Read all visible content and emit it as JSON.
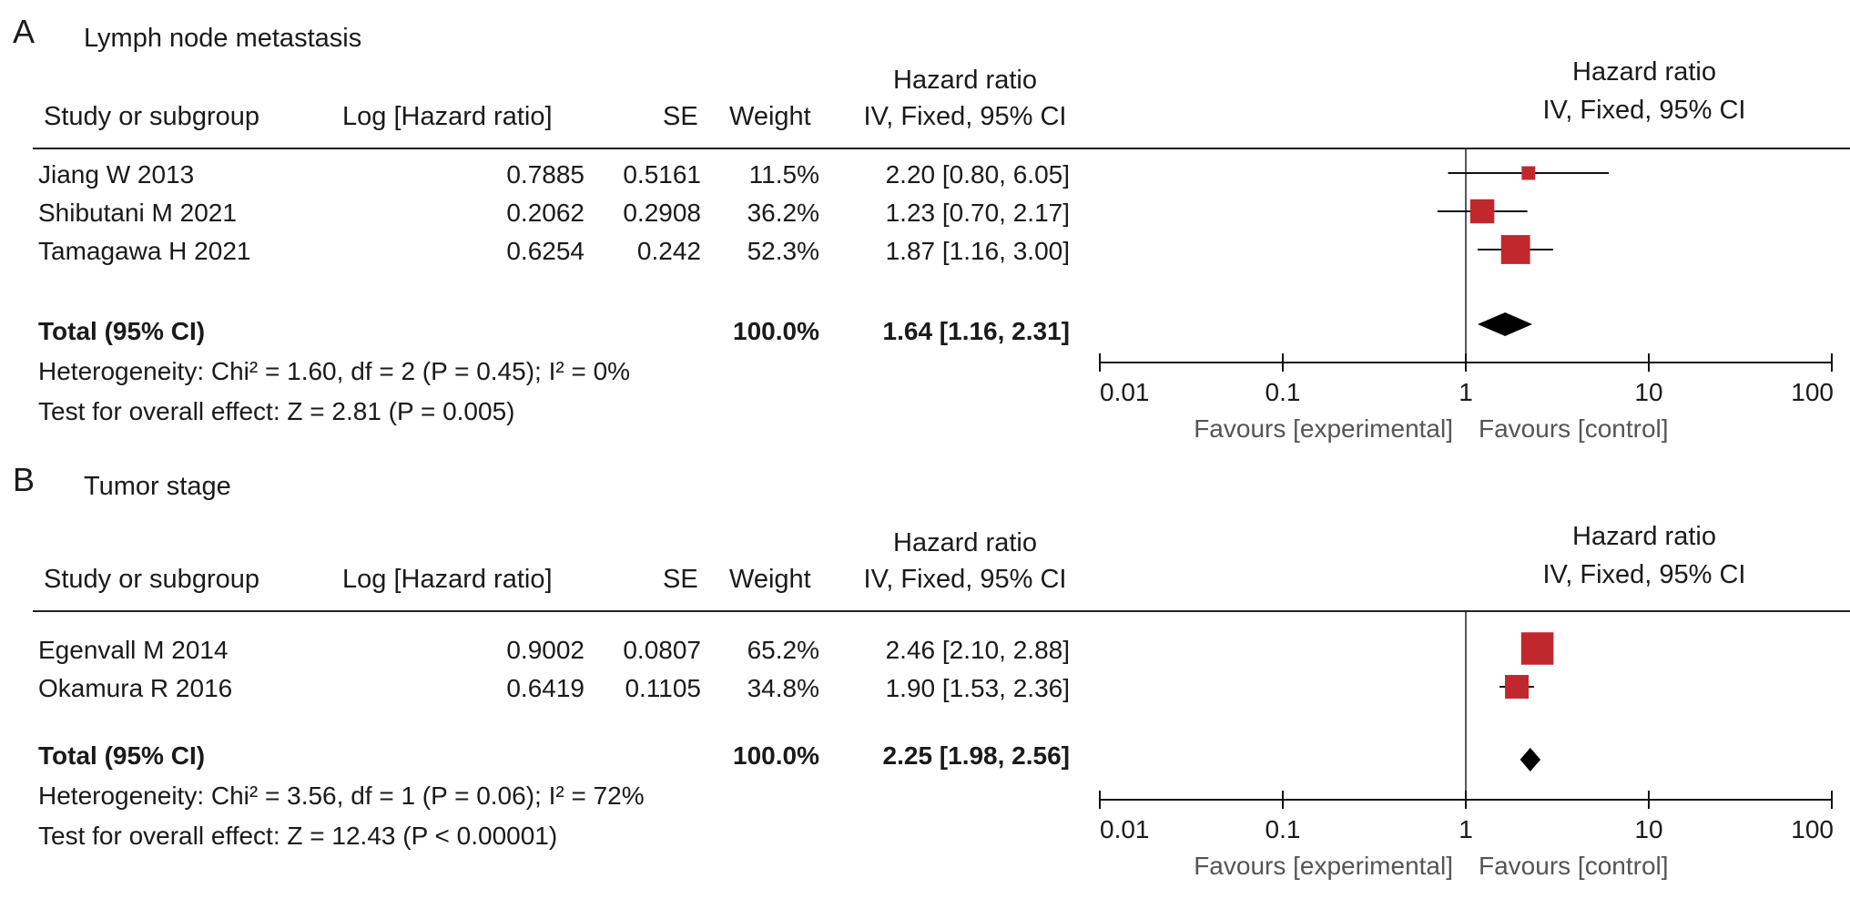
{
  "chart_data": [
    {
      "type": "forest",
      "panel_letter": "A",
      "title": "Lymph node metastasis",
      "columns": {
        "study": "Study or subgroup",
        "log_hr": "Log [Hazard ratio]",
        "se": "SE",
        "weight": "Weight",
        "hr_line1": "Hazard ratio",
        "hr_line2": "IV, Fixed, 95% CI"
      },
      "plot_header": {
        "line1": "Hazard ratio",
        "line2": "IV, Fixed, 95% CI"
      },
      "studies": [
        {
          "name": "Jiang W 2013",
          "log_hr": "0.7885",
          "se": "0.5161",
          "weight": "11.5%",
          "ci_text": "2.20 [0.80, 6.05]",
          "hr": 2.2,
          "lower": 0.8,
          "upper": 6.05,
          "weight_value": 11.5
        },
        {
          "name": "Shibutani M 2021",
          "log_hr": "0.2062",
          "se": "0.2908",
          "weight": "36.2%",
          "ci_text": "1.23 [0.70, 2.17]",
          "hr": 1.23,
          "lower": 0.7,
          "upper": 2.17,
          "weight_value": 36.2
        },
        {
          "name": "Tamagawa H 2021",
          "log_hr": "0.6254",
          "se": "0.242",
          "weight": "52.3%",
          "ci_text": "1.87 [1.16, 3.00]",
          "hr": 1.87,
          "lower": 1.16,
          "upper": 3.0,
          "weight_value": 52.3
        }
      ],
      "total": {
        "label": "Total (95% CI)",
        "weight": "100.0%",
        "ci_text": "1.64 [1.16, 2.31]",
        "hr": 1.64,
        "lower": 1.16,
        "upper": 2.31
      },
      "heterogeneity": "Heterogeneity: Chi² = 1.60, df = 2 (P = 0.45); I² = 0%",
      "overall_effect": "Test for overall effect: Z = 2.81 (P = 0.005)",
      "x_scale": "log",
      "xlim": [
        0.01,
        100
      ],
      "xticks": [
        0.01,
        0.1,
        1,
        10,
        100
      ],
      "xtick_labels": [
        "0.01",
        "0.1",
        "1",
        "10",
        "100"
      ],
      "favours_left": "Favours [experimental]",
      "favours_right": "Favours [control]",
      "square_color": "#c0282d",
      "diamond_color": "#000000"
    },
    {
      "type": "forest",
      "panel_letter": "B",
      "title": "Tumor stage",
      "columns": {
        "study": "Study or subgroup",
        "log_hr": "Log [Hazard ratio]",
        "se": "SE",
        "weight": "Weight",
        "hr_line1": "Hazard ratio",
        "hr_line2": "IV, Fixed, 95% CI"
      },
      "plot_header": {
        "line1": "Hazard ratio",
        "line2": "IV, Fixed, 95% CI"
      },
      "studies": [
        {
          "name": "Egenvall M 2014",
          "log_hr": "0.9002",
          "se": "0.0807",
          "weight": "65.2%",
          "ci_text": "2.46 [2.10, 2.88]",
          "hr": 2.46,
          "lower": 2.1,
          "upper": 2.88,
          "weight_value": 65.2
        },
        {
          "name": "Okamura R 2016",
          "log_hr": "0.6419",
          "se": "0.1105",
          "weight": "34.8%",
          "ci_text": "1.90 [1.53, 2.36]",
          "hr": 1.9,
          "lower": 1.53,
          "upper": 2.36,
          "weight_value": 34.8
        }
      ],
      "total": {
        "label": "Total (95% CI)",
        "weight": "100.0%",
        "ci_text": "2.25 [1.98, 2.56]",
        "hr": 2.25,
        "lower": 1.98,
        "upper": 2.56
      },
      "heterogeneity": "Heterogeneity: Chi² = 3.56, df = 1 (P = 0.06); I² = 72%",
      "overall_effect": "Test for overall effect: Z = 12.43 (P < 0.00001)",
      "x_scale": "log",
      "xlim": [
        0.01,
        100
      ],
      "xticks": [
        0.01,
        0.1,
        1,
        10,
        100
      ],
      "xtick_labels": [
        "0.01",
        "0.1",
        "1",
        "10",
        "100"
      ],
      "favours_left": "Favours [experimental]",
      "favours_right": "Favours [control]",
      "square_color": "#c0282d",
      "diamond_color": "#000000"
    }
  ]
}
